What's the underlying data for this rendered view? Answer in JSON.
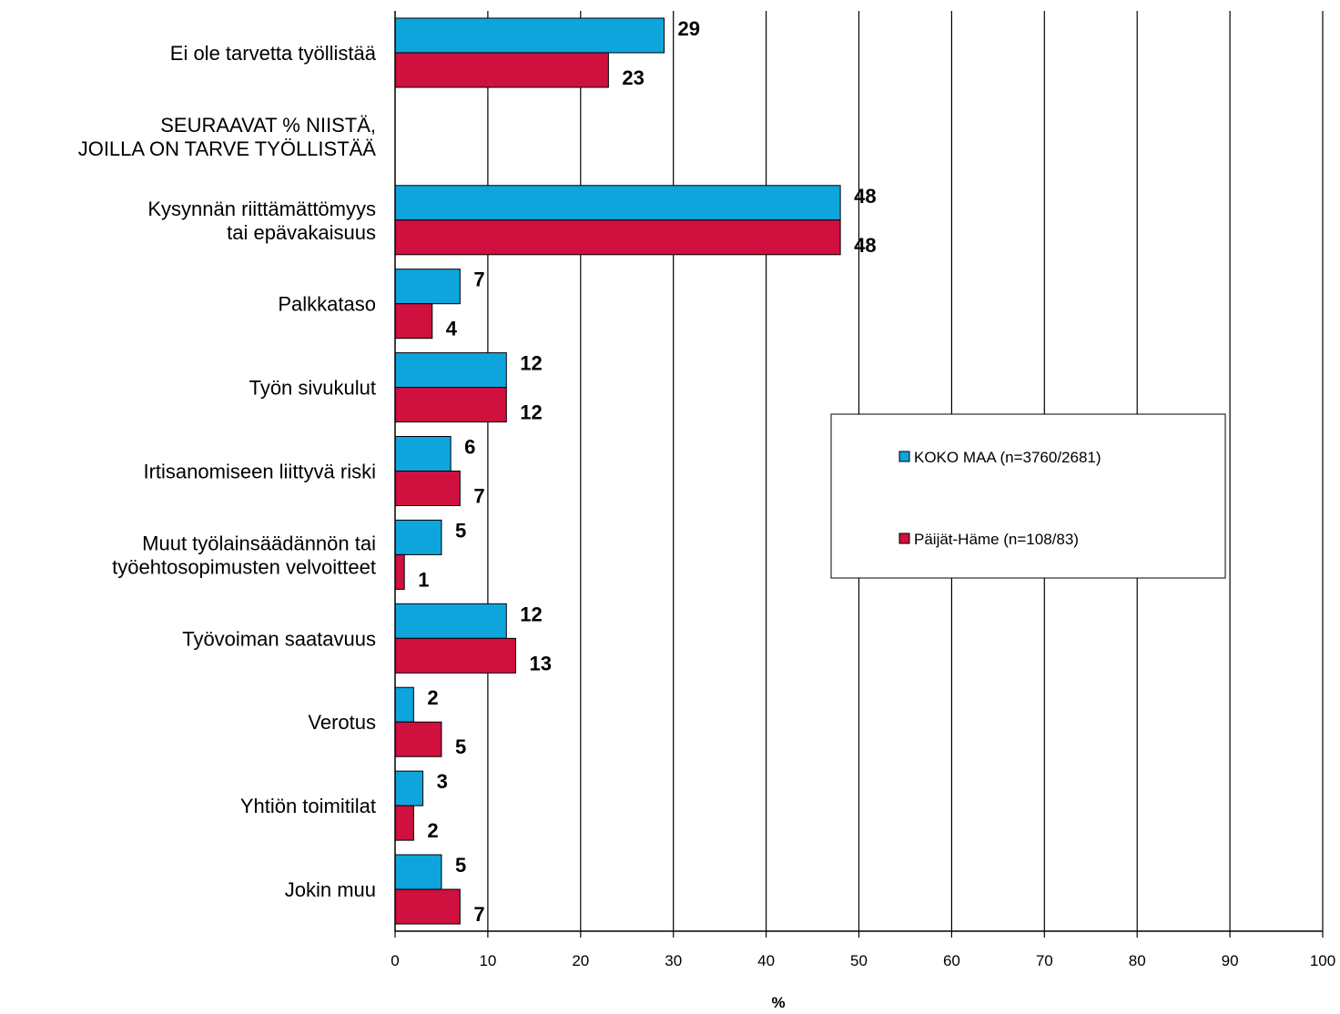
{
  "chart_data": {
    "type": "bar",
    "orientation": "horizontal",
    "categories": [
      [
        "Ei ole tarvetta työllistää"
      ],
      [
        "SEURAAVAT % NIISTÄ,",
        "JOILLA ON TARVE TYÖLLISTÄÄ"
      ],
      [
        "Kysynnän riittämättömyys",
        "tai epävakaisuus"
      ],
      [
        "Palkkataso"
      ],
      [
        "Työn sivukulut"
      ],
      [
        "Irtisanomiseen liittyvä riski"
      ],
      [
        "Muut työlainsäädännön  tai",
        "työehtosopimusten velvoitteet"
      ],
      [
        "Työvoiman saatavuus"
      ],
      [
        "Verotus"
      ],
      [
        "Yhtiön toimitilat"
      ],
      [
        "Jokin muu"
      ]
    ],
    "series": [
      {
        "name": "KOKO MAA (n=3760/2681)",
        "color": "#0ea5dc",
        "values": [
          29,
          null,
          48,
          7,
          12,
          6,
          5,
          12,
          2,
          3,
          5
        ]
      },
      {
        "name": "Päijät-Häme (n=108/83)",
        "color": "#d0103e",
        "values": [
          23,
          null,
          48,
          4,
          12,
          7,
          1,
          13,
          5,
          2,
          7
        ]
      }
    ],
    "xlabel": "%",
    "xlim": [
      0,
      100
    ],
    "xticks": [
      0,
      10,
      20,
      30,
      40,
      50,
      60,
      70,
      80,
      90,
      100
    ],
    "grid": "vertical",
    "legend_position": "right-center"
  }
}
